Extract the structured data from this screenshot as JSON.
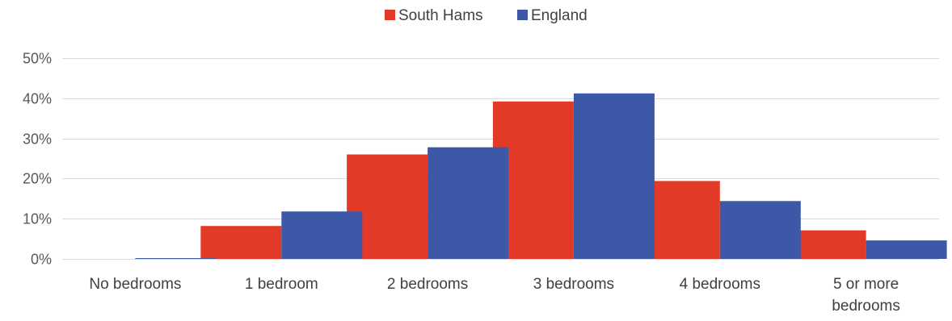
{
  "chart_data": {
    "type": "bar",
    "categories": [
      [
        "No bedrooms"
      ],
      [
        "1 bedroom"
      ],
      [
        "2 bedrooms"
      ],
      [
        "3 bedrooms"
      ],
      [
        "4 bedrooms"
      ],
      [
        "5 or more",
        "bedrooms"
      ]
    ],
    "series": [
      {
        "name": "South Hams",
        "color": "#e33a27",
        "values": [
          0,
          8.2,
          26.0,
          39.2,
          19.4,
          7.1
        ]
      },
      {
        "name": "England",
        "color": "#3d58a6",
        "values": [
          0.2,
          11.8,
          27.8,
          41.2,
          14.4,
          4.6
        ]
      }
    ],
    "y_ticks": [
      "0%",
      "10%",
      "20%",
      "30%",
      "40%",
      "50%"
    ],
    "ylim": [
      0,
      50
    ],
    "grid": true,
    "legend_position": "top-center"
  }
}
